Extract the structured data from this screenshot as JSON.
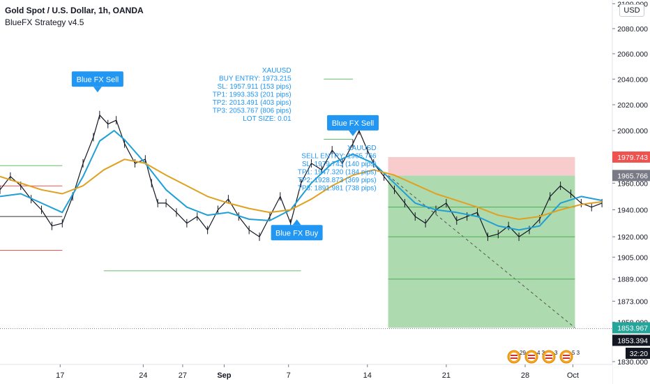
{
  "header": {
    "symbol_line": "Gold Spot / U.S. Dollar, 1h, OANDA",
    "indicator": "BlueFX Strategy v4.5"
  },
  "currency_button": "USD",
  "colors": {
    "price": "#131722",
    "ema_fast": "#1e9fd6",
    "ema_slow": "#e0a020",
    "signal": "#2196f3",
    "profit_zone": "#a5d6a7",
    "stop_zone": "#f7c6c6",
    "green_level": "#66bb6a",
    "red_level": "#ef5350"
  },
  "chart_data": {
    "type": "line",
    "title": "Gold Spot / U.S. Dollar, 1h, OANDA",
    "subtitle": "BlueFX Strategy v4.5",
    "xlabel": "",
    "ylabel": "",
    "x_ticks": [
      "17",
      "24",
      "27",
      "Sep",
      "7",
      "14",
      "21",
      "28",
      "Oct"
    ],
    "y_ticks": [
      2100,
      2080,
      2060,
      2040,
      2020,
      2000,
      1960,
      1940,
      1920,
      1905,
      1889,
      1873,
      1858,
      1830
    ],
    "y_tick_labels": [
      "2100.000",
      "2080.000",
      "2060.000",
      "2040.000",
      "2020.000",
      "2000.000",
      "1960.000",
      "1940.000",
      "1920.000",
      "1905.000",
      "1889.000",
      "1873.000",
      "1858.000",
      "1830.000"
    ],
    "y_log_scale": true,
    "ylim": [
      1828,
      2103
    ],
    "x_day_range": [
      14,
      43.5
    ],
    "grid": false,
    "legend": "none",
    "series": [
      {
        "name": "",
        "kind": "price",
        "color": "#131722",
        "points": [
          [
            14.0,
            1955
          ],
          [
            14.5,
            1965
          ],
          [
            15.0,
            1958
          ],
          [
            15.5,
            1948
          ],
          [
            16.0,
            1940
          ],
          [
            16.5,
            1928
          ],
          [
            17.0,
            1930
          ],
          [
            17.5,
            1950
          ],
          [
            18.0,
            1975
          ],
          [
            18.5,
            1995
          ],
          [
            18.8,
            2012
          ],
          [
            19.2,
            2005
          ],
          [
            19.6,
            2008
          ],
          [
            20.0,
            1990
          ],
          [
            20.5,
            1975
          ],
          [
            21.0,
            1978
          ],
          [
            21.3,
            1960
          ],
          [
            21.6,
            1945
          ],
          [
            22.0,
            1945
          ],
          [
            22.5,
            1938
          ],
          [
            23.0,
            1930
          ],
          [
            23.5,
            1935
          ],
          [
            24.0,
            1925
          ],
          [
            24.5,
            1940
          ],
          [
            25.0,
            1948
          ],
          [
            25.5,
            1935
          ],
          [
            26.0,
            1925
          ],
          [
            26.5,
            1920
          ],
          [
            27.0,
            1935
          ],
          [
            27.5,
            1950
          ],
          [
            28.0,
            1930
          ],
          [
            28.5,
            1960
          ],
          [
            29.0,
            1975
          ],
          [
            29.5,
            1970
          ],
          [
            30.0,
            1985
          ],
          [
            30.5,
            1975
          ],
          [
            31.0,
            1990
          ],
          [
            31.3,
            2000
          ],
          [
            31.7,
            1985
          ],
          [
            32.0,
            1975
          ],
          [
            32.5,
            1965
          ],
          [
            33.0,
            1955
          ],
          [
            33.5,
            1945
          ],
          [
            34.0,
            1935
          ],
          [
            34.5,
            1930
          ],
          [
            35.0,
            1940
          ],
          [
            35.5,
            1945
          ],
          [
            36.0,
            1932
          ],
          [
            36.5,
            1935
          ],
          [
            37.0,
            1938
          ],
          [
            37.5,
            1920
          ],
          [
            38.0,
            1922
          ],
          [
            38.5,
            1928
          ],
          [
            39.0,
            1920
          ],
          [
            39.5,
            1925
          ],
          [
            40.0,
            1933
          ],
          [
            40.5,
            1950
          ],
          [
            41.0,
            1958
          ],
          [
            41.5,
            1952
          ],
          [
            42.0,
            1945
          ],
          [
            42.5,
            1942
          ],
          [
            43.0,
            1945
          ]
        ]
      },
      {
        "name": "",
        "kind": "ema",
        "color": "#1e9fd6",
        "points": [
          [
            14.0,
            1950
          ],
          [
            15.0,
            1952
          ],
          [
            16.0,
            1945
          ],
          [
            17.0,
            1938
          ],
          [
            18.0,
            1965
          ],
          [
            18.8,
            1992
          ],
          [
            19.5,
            2000
          ],
          [
            20.0,
            1993
          ],
          [
            21.0,
            1975
          ],
          [
            22.0,
            1955
          ],
          [
            23.0,
            1942
          ],
          [
            24.0,
            1936
          ],
          [
            25.0,
            1938
          ],
          [
            26.0,
            1933
          ],
          [
            27.0,
            1932
          ],
          [
            28.0,
            1940
          ],
          [
            29.0,
            1960
          ],
          [
            30.0,
            1975
          ],
          [
            31.0,
            1982
          ],
          [
            32.0,
            1975
          ],
          [
            33.0,
            1960
          ],
          [
            34.0,
            1945
          ],
          [
            35.0,
            1940
          ],
          [
            36.0,
            1938
          ],
          [
            37.0,
            1935
          ],
          [
            38.0,
            1928
          ],
          [
            39.0,
            1925
          ],
          [
            40.0,
            1928
          ],
          [
            41.0,
            1945
          ],
          [
            42.0,
            1950
          ],
          [
            43.0,
            1947
          ]
        ]
      },
      {
        "name": "",
        "kind": "ema",
        "color": "#e0a020",
        "points": [
          [
            14.0,
            1965
          ],
          [
            15.0,
            1960
          ],
          [
            16.0,
            1955
          ],
          [
            17.0,
            1952
          ],
          [
            18.0,
            1958
          ],
          [
            19.0,
            1970
          ],
          [
            20.0,
            1978
          ],
          [
            21.0,
            1975
          ],
          [
            22.0,
            1966
          ],
          [
            23.0,
            1958
          ],
          [
            24.0,
            1950
          ],
          [
            25.0,
            1945
          ],
          [
            26.0,
            1941
          ],
          [
            27.0,
            1938
          ],
          [
            28.0,
            1940
          ],
          [
            29.0,
            1948
          ],
          [
            30.0,
            1958
          ],
          [
            31.0,
            1966
          ],
          [
            32.0,
            1970
          ],
          [
            33.0,
            1966
          ],
          [
            34.0,
            1959
          ],
          [
            35.0,
            1952
          ],
          [
            36.0,
            1947
          ],
          [
            37.0,
            1942
          ],
          [
            38.0,
            1936
          ],
          [
            39.0,
            1933
          ],
          [
            40.0,
            1935
          ],
          [
            41.0,
            1940
          ],
          [
            42.0,
            1944
          ],
          [
            43.0,
            1946
          ]
        ]
      }
    ],
    "zones": [
      {
        "kind": "profit",
        "color": "#a5d6a7",
        "day_range": [
          32.7,
          41.7
        ],
        "price_range": [
          1853.967,
          1965.766
        ]
      },
      {
        "kind": "stop",
        "color": "#f7c6c6",
        "day_range": [
          32.7,
          41.7
        ],
        "price_range": [
          1965.766,
          1979.743
        ]
      }
    ],
    "level_lines": [
      {
        "price": 2040,
        "day_range": [
          29.6,
          31.0
        ],
        "color": "#66bb6a"
      },
      {
        "price": 1993.353,
        "day_range": [
          29.6,
          31.0
        ],
        "color": "#66bb6a"
      },
      {
        "price": 1973.215,
        "day_range": [
          14.0,
          17.0
        ],
        "color": "#66bb6a"
      },
      {
        "price": 1957.911,
        "day_range": [
          14.0,
          17.0
        ],
        "color": "#ef5350"
      },
      {
        "price": 1935,
        "day_range": [
          14.0,
          17.0
        ],
        "color": "#333333"
      },
      {
        "price": 1910,
        "day_range": [
          14.0,
          17.0
        ],
        "color": "#ef5350"
      },
      {
        "price": 1895,
        "day_range": [
          19.0,
          28.5
        ],
        "color": "#66bb6a"
      },
      {
        "price": 1942,
        "day_range": [
          32.7,
          41.7
        ],
        "color": "#4caf50"
      },
      {
        "price": 1920,
        "day_range": [
          32.7,
          41.7
        ],
        "color": "#4caf50"
      },
      {
        "price": 1889,
        "day_range": [
          32.7,
          41.7
        ],
        "color": "#4caf50"
      }
    ],
    "price_labels": [
      {
        "price": 1979.743,
        "text": "1979.743",
        "bg": "#ef5350"
      },
      {
        "price": 1965.766,
        "text": "1965.766",
        "bg": "#787b86"
      },
      {
        "price": 1853.967,
        "text": "1853.967",
        "bg": "#26a69a"
      },
      {
        "price": 1853.394,
        "text": "1853.394",
        "bg": "#131722"
      }
    ],
    "countdown": "32:20",
    "signals": [
      {
        "text": "Blue FX Sell",
        "day": 18.7,
        "price": 2040
      },
      {
        "text": "Blue FX Sell",
        "day": 31.0,
        "price": 2006
      },
      {
        "text": "Blue FX Buy",
        "day": 28.3,
        "price": 1923
      }
    ],
    "annotations": [
      {
        "lines": [
          "XAUUSD",
          "BUY ENTRY: 1973.215",
          "SL: 1957.911 (153 pips)",
          "TP1: 1993.353 (201 pips)",
          "TP2: 2013.491 (403 pips)",
          "TP3: 2053.767 (806 pips)",
          "LOT SIZE: 0.01"
        ],
        "anchor_day": 28.5,
        "anchor_price": 2021
      },
      {
        "lines": [
          "XAUUSD",
          "SELL ENTRY: 1965.766",
          "SL: 1979.743 (140 pips)",
          "TP1: 1947.320 (184 pips)",
          "TP2: 1928.873 (369 pips)",
          "TP3: 1891.981 (738 pips)"
        ],
        "anchor_day": 32.6,
        "anchor_price": 1966
      }
    ],
    "event_badges": [
      {
        "text": "29",
        "day": 39.4
      },
      {
        "text": "4 3",
        "day": 40.3
      },
      {
        "text": "3",
        "day": 41.3
      },
      {
        "text": "5 3",
        "day": 42.3
      }
    ]
  }
}
